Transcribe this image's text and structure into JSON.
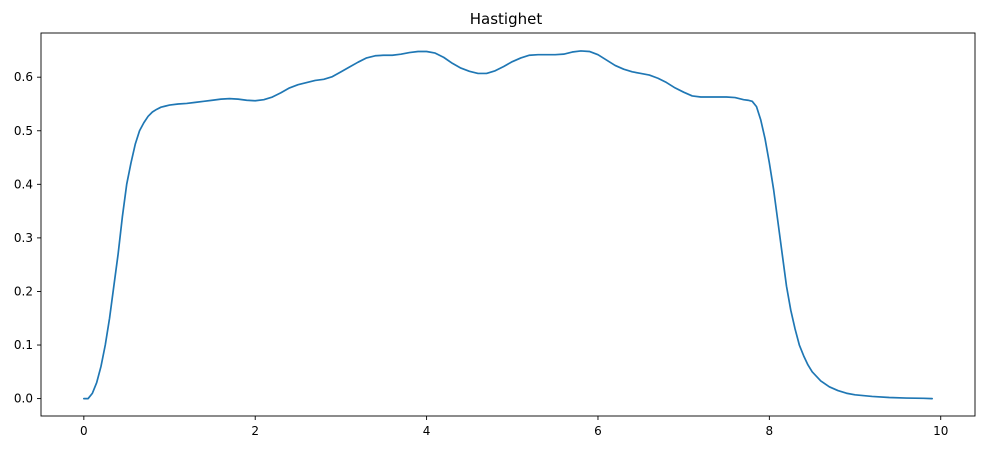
{
  "chart_data": {
    "type": "line",
    "title": "Hastighet",
    "xlabel": "",
    "ylabel": "",
    "xlim": [
      -0.5,
      10.4
    ],
    "ylim": [
      -0.0325,
      0.6825
    ],
    "x_ticks": [
      0,
      2,
      4,
      6,
      8,
      10
    ],
    "y_ticks": [
      0.0,
      0.1,
      0.2,
      0.3,
      0.4,
      0.5,
      0.6
    ],
    "x_tick_labels": [
      "0",
      "2",
      "4",
      "6",
      "8",
      "10"
    ],
    "y_tick_labels": [
      "0.0",
      "0.1",
      "0.2",
      "0.3",
      "0.4",
      "0.5",
      "0.6"
    ],
    "grid": false,
    "legend": "none",
    "series": [
      {
        "color": "#1f77b4",
        "x": [
          0.0,
          0.05,
          0.1,
          0.15,
          0.2,
          0.25,
          0.3,
          0.35,
          0.4,
          0.45,
          0.5,
          0.55,
          0.6,
          0.65,
          0.7,
          0.75,
          0.8,
          0.85,
          0.9,
          0.95,
          1.0,
          1.1,
          1.2,
          1.3,
          1.4,
          1.5,
          1.6,
          1.7,
          1.8,
          1.9,
          2.0,
          2.1,
          2.2,
          2.3,
          2.4,
          2.5,
          2.6,
          2.7,
          2.8,
          2.9,
          3.0,
          3.1,
          3.2,
          3.3,
          3.4,
          3.5,
          3.6,
          3.7,
          3.8,
          3.9,
          4.0,
          4.1,
          4.2,
          4.3,
          4.4,
          4.5,
          4.6,
          4.7,
          4.8,
          4.9,
          5.0,
          5.1,
          5.2,
          5.3,
          5.4,
          5.5,
          5.6,
          5.7,
          5.8,
          5.9,
          6.0,
          6.1,
          6.2,
          6.3,
          6.4,
          6.5,
          6.6,
          6.7,
          6.8,
          6.9,
          7.0,
          7.1,
          7.2,
          7.3,
          7.4,
          7.5,
          7.6,
          7.7,
          7.75,
          7.8,
          7.85,
          7.9,
          7.95,
          8.0,
          8.05,
          8.1,
          8.15,
          8.2,
          8.25,
          8.3,
          8.35,
          8.4,
          8.45,
          8.5,
          8.6,
          8.7,
          8.8,
          8.9,
          9.0,
          9.2,
          9.4,
          9.6,
          9.8,
          9.9
        ],
        "y": [
          0.0,
          0.0,
          0.01,
          0.03,
          0.06,
          0.1,
          0.15,
          0.21,
          0.27,
          0.34,
          0.4,
          0.44,
          0.475,
          0.5,
          0.515,
          0.527,
          0.535,
          0.54,
          0.544,
          0.546,
          0.548,
          0.55,
          0.551,
          0.553,
          0.555,
          0.557,
          0.559,
          0.56,
          0.559,
          0.557,
          0.556,
          0.558,
          0.563,
          0.571,
          0.58,
          0.586,
          0.59,
          0.594,
          0.596,
          0.601,
          0.61,
          0.619,
          0.628,
          0.636,
          0.64,
          0.641,
          0.641,
          0.643,
          0.646,
          0.648,
          0.648,
          0.645,
          0.637,
          0.626,
          0.617,
          0.611,
          0.607,
          0.607,
          0.612,
          0.62,
          0.629,
          0.636,
          0.641,
          0.642,
          0.642,
          0.642,
          0.643,
          0.647,
          0.649,
          0.648,
          0.642,
          0.632,
          0.622,
          0.615,
          0.61,
          0.607,
          0.604,
          0.598,
          0.59,
          0.58,
          0.572,
          0.565,
          0.563,
          0.563,
          0.563,
          0.563,
          0.562,
          0.558,
          0.557,
          0.555,
          0.545,
          0.52,
          0.485,
          0.44,
          0.39,
          0.33,
          0.27,
          0.21,
          0.165,
          0.13,
          0.1,
          0.08,
          0.063,
          0.05,
          0.033,
          0.022,
          0.015,
          0.01,
          0.007,
          0.004,
          0.002,
          0.001,
          0.0005,
          0.0
        ]
      }
    ]
  }
}
